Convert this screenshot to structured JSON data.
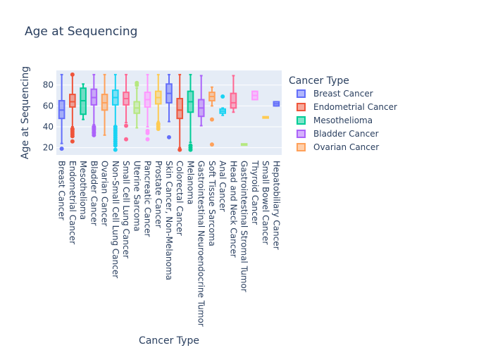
{
  "chart_data": {
    "type": "box",
    "title": "Age at Sequencing",
    "xlabel": "Cancer Type",
    "ylabel": "Age at Sequencing",
    "ylim": [
      13,
      94
    ],
    "yticks": [
      20,
      40,
      60,
      80
    ],
    "grid": true,
    "legend": {
      "title": "Cancer Type",
      "placement": "top-right",
      "visible_entries": [
        "Breast Cancer",
        "Endometrial Cancer",
        "Mesothelioma",
        "Bladder Cancer",
        "Ovarian Cancer"
      ]
    },
    "colors": {
      "plot_bg": "#e5ecf6",
      "grid": "#ffffff",
      "text": "#2a3f5f"
    },
    "series": [
      {
        "name": "Breast Cancer",
        "color": "#636efa",
        "q1": 48,
        "median": 56,
        "q3": 65,
        "lower": 24,
        "upper": 90,
        "outliers": [
          19
        ]
      },
      {
        "name": "Endometrial Cancer",
        "color": "#ef553b",
        "q1": 59,
        "median": 64,
        "q3": 71,
        "lower": 40,
        "upper": 90,
        "outliers": [
          26,
          31,
          33,
          35,
          37,
          38,
          90
        ]
      },
      {
        "name": "Mesothelioma",
        "color": "#00cc96",
        "q1": 52,
        "median": 65,
        "q3": 77,
        "lower": 47,
        "upper": 81,
        "outliers": []
      },
      {
        "name": "Bladder Cancer",
        "color": "#ab63fa",
        "q1": 61,
        "median": 68,
        "q3": 76,
        "lower": 42,
        "upper": 90,
        "outliers": [
          32,
          34,
          35,
          37,
          38,
          39,
          40
        ]
      },
      {
        "name": "Ovarian Cancer",
        "color": "#ffa15a",
        "q1": 56,
        "median": 63,
        "q3": 71,
        "lower": 32,
        "upper": 90,
        "outliers": []
      },
      {
        "name": "Non-Small Cell Lung Cancer",
        "color": "#19d3f3",
        "q1": 61,
        "median": 68,
        "q3": 75,
        "lower": 41,
        "upper": 90,
        "outliers": [
          18,
          22,
          24,
          26,
          28,
          30,
          32,
          34,
          36,
          38,
          40
        ]
      },
      {
        "name": "Small Cell Lung Cancer",
        "color": "#ff6692",
        "q1": 61,
        "median": 67,
        "q3": 73,
        "lower": 44,
        "upper": 90,
        "outliers": [
          28,
          41
        ]
      },
      {
        "name": "Uterine Sarcoma",
        "color": "#b6e880",
        "q1": 53,
        "median": 58,
        "q3": 64,
        "lower": 39,
        "upper": 77,
        "outliers": [
          80,
          82
        ]
      },
      {
        "name": "Pancreatic Cancer",
        "color": "#ff97ff",
        "q1": 59,
        "median": 66,
        "q3": 73,
        "lower": 40,
        "upper": 90,
        "outliers": [
          28,
          34,
          36
        ]
      },
      {
        "name": "Prostate Cancer",
        "color": "#fecb52",
        "q1": 62,
        "median": 68,
        "q3": 74,
        "lower": 45,
        "upper": 90,
        "outliers": [
          38,
          40,
          42,
          43
        ]
      },
      {
        "name": "Skin Cancer, Non-Melanoma",
        "color": "#636efa",
        "q1": 63,
        "median": 72,
        "q3": 81,
        "lower": 45,
        "upper": 90,
        "outliers": [
          30
        ]
      },
      {
        "name": "Colorectal Cancer",
        "color": "#ef553b",
        "q1": 48,
        "median": 56,
        "q3": 67,
        "lower": 20,
        "upper": 90,
        "outliers": [
          18
        ]
      },
      {
        "name": "Melanoma",
        "color": "#00cc96",
        "q1": 54,
        "median": 64,
        "q3": 74,
        "lower": 25,
        "upper": 90,
        "outliers": [
          18,
          20,
          22
        ]
      },
      {
        "name": "Gastrointestinal Neuroendocrine Tumor",
        "color": "#ab63fa",
        "q1": 50,
        "median": 58,
        "q3": 66,
        "lower": 41,
        "upper": 89,
        "outliers": []
      },
      {
        "name": "Soft Tissue Sarcoma",
        "color": "#ffa15a",
        "q1": 65,
        "median": 69,
        "q3": 73,
        "lower": 60,
        "upper": 78,
        "outliers": [
          23,
          47
        ]
      },
      {
        "name": "Anal Cancer",
        "color": "#19d3f3",
        "q1": 53,
        "median": 55,
        "q3": 57,
        "lower": 51,
        "upper": 58,
        "outliers": [
          69
        ]
      },
      {
        "name": "Head and Neck Cancer",
        "color": "#ff6692",
        "q1": 58,
        "median": 63,
        "q3": 72,
        "lower": 54,
        "upper": 89,
        "outliers": []
      },
      {
        "name": "Gastrointestinal Stromal Tumor",
        "color": "#b6e880",
        "q1": 23,
        "median": 23,
        "q3": 23,
        "lower": 23,
        "upper": 23,
        "outliers": []
      },
      {
        "name": "Thyroid Cancer",
        "color": "#ff97ff",
        "q1": 66,
        "median": 70,
        "q3": 74,
        "lower": 66,
        "upper": 74,
        "outliers": []
      },
      {
        "name": "Small Bowel Cancer",
        "color": "#fecb52",
        "q1": 49,
        "median": 49,
        "q3": 49,
        "lower": 49,
        "upper": 49,
        "outliers": []
      },
      {
        "name": "Hepatobiliary Cancer",
        "color": "#636efa",
        "q1": 60,
        "median": 62,
        "q3": 64,
        "lower": 60,
        "upper": 64,
        "outliers": []
      }
    ]
  }
}
